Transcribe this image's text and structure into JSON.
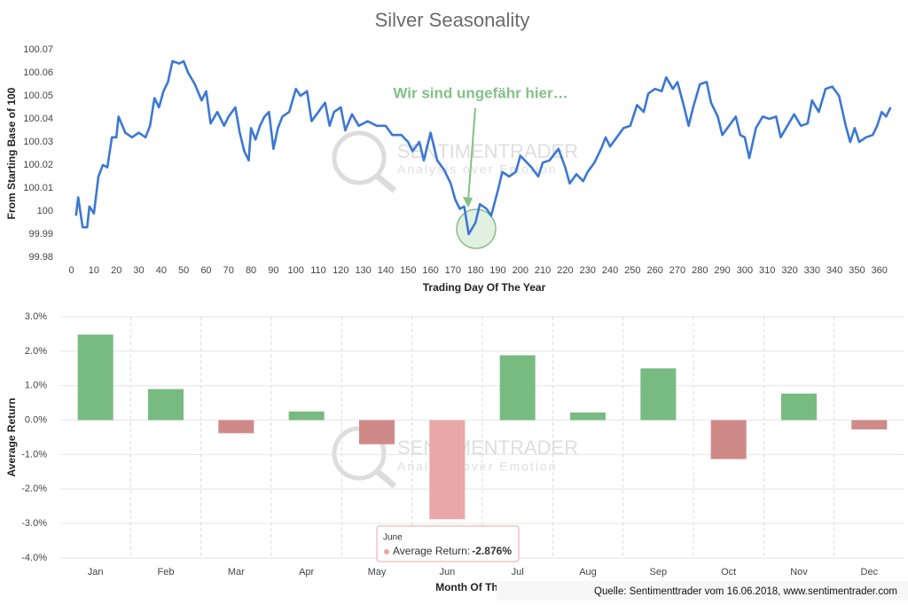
{
  "chart_data": [
    {
      "type": "line",
      "title": "Silver Seasonality",
      "x_label": "Trading Day Of The Year",
      "y_label": "From Starting Base of 100",
      "color": "#3b78d4",
      "annotation": "Wir sind ungefähr hier…",
      "watermark": "SENTIMENTRADER",
      "watermark_tagline": "Analysis over Emotion",
      "x": [
        2,
        3,
        5,
        7,
        8,
        10,
        12,
        14,
        16,
        18,
        20,
        21,
        24,
        27,
        30,
        33,
        35,
        37,
        39,
        41,
        43,
        45,
        48,
        50,
        52,
        55,
        58,
        60,
        62,
        65,
        68,
        70,
        73,
        75,
        77,
        79,
        80,
        82,
        84,
        86,
        88,
        90,
        92,
        94,
        97,
        100,
        102,
        105,
        107,
        110,
        113,
        115,
        117,
        120,
        122,
        125,
        128,
        132,
        136,
        140,
        143,
        147,
        150,
        152,
        155,
        157,
        160,
        163,
        166,
        169,
        171,
        173,
        175,
        177,
        180,
        182,
        185,
        187,
        190,
        192,
        195,
        198,
        200,
        202,
        205,
        208,
        210,
        213,
        217,
        220,
        222,
        225,
        228,
        230,
        233,
        236,
        238,
        240,
        243,
        246,
        249,
        252,
        255,
        257,
        260,
        263,
        265,
        268,
        270,
        273,
        275,
        277,
        280,
        283,
        285,
        288,
        290,
        293,
        296,
        298,
        300,
        302,
        305,
        308,
        311,
        314,
        316,
        319,
        322,
        325,
        328,
        330,
        333,
        336,
        339,
        342,
        345,
        347,
        349,
        351,
        354,
        357,
        359,
        361,
        363,
        365
      ],
      "values": [
        99.998,
        100.006,
        99.993,
        99.993,
        100.002,
        99.999,
        100.015,
        100.02,
        100.019,
        100.032,
        100.032,
        100.041,
        100.034,
        100.032,
        100.034,
        100.032,
        100.037,
        100.049,
        100.045,
        100.052,
        100.056,
        100.065,
        100.064,
        100.065,
        100.06,
        100.055,
        100.048,
        100.052,
        100.038,
        100.043,
        100.037,
        100.041,
        100.045,
        100.034,
        100.026,
        100.022,
        100.036,
        100.031,
        100.037,
        100.041,
        100.043,
        100.027,
        100.036,
        100.041,
        100.043,
        100.053,
        100.05,
        100.052,
        100.039,
        100.043,
        100.047,
        100.037,
        100.043,
        100.045,
        100.035,
        100.042,
        100.037,
        100.039,
        100.037,
        100.037,
        100.033,
        100.033,
        100.03,
        100.026,
        100.03,
        100.022,
        100.034,
        100.022,
        100.018,
        100.012,
        100.005,
        100.001,
        100.002,
        99.99,
        99.995,
        100.003,
        100.001,
        99.998,
        100.009,
        100.017,
        100.015,
        100.017,
        100.024,
        100.022,
        100.019,
        100.015,
        100.021,
        100.022,
        100.027,
        100.019,
        100.012,
        100.016,
        100.013,
        100.017,
        100.021,
        100.027,
        100.032,
        100.028,
        100.032,
        100.036,
        100.037,
        100.046,
        100.043,
        100.051,
        100.053,
        100.052,
        100.058,
        100.053,
        100.056,
        100.045,
        100.037,
        100.045,
        100.055,
        100.056,
        100.047,
        100.041,
        100.033,
        100.037,
        100.041,
        100.033,
        100.032,
        100.023,
        100.036,
        100.041,
        100.04,
        100.041,
        100.032,
        100.037,
        100.042,
        100.037,
        100.038,
        100.048,
        100.043,
        100.053,
        100.054,
        100.05,
        100.037,
        100.03,
        100.036,
        100.03,
        100.032,
        100.033,
        100.037,
        100.043,
        100.041,
        100.045
      ],
      "xlim": [
        -3,
        368
      ],
      "xticks": [
        0,
        10,
        20,
        30,
        40,
        50,
        60,
        70,
        80,
        90,
        100,
        110,
        120,
        130,
        140,
        150,
        160,
        170,
        180,
        190,
        200,
        210,
        220,
        230,
        240,
        250,
        260,
        270,
        280,
        290,
        300,
        310,
        320,
        330,
        340,
        350,
        360
      ],
      "ylim": [
        99.98,
        100.07
      ],
      "yticks": [
        99.98,
        99.99,
        100,
        100.01,
        100.02,
        100.03,
        100.04,
        100.05,
        100.06,
        100.07
      ],
      "grid": false
    },
    {
      "type": "bar",
      "x_label": "Month Of The Year",
      "y_label": "Average Return",
      "watermark": "SENTIMENTRADER",
      "watermark_tagline": "Analysis over Emotion",
      "categories": [
        "Jan",
        "Feb",
        "Mar",
        "Apr",
        "May",
        "Jun",
        "Jul",
        "Aug",
        "Sep",
        "Oct",
        "Nov",
        "Dec"
      ],
      "values": [
        2.48,
        0.9,
        -0.38,
        0.25,
        -0.7,
        -2.876,
        1.88,
        0.22,
        1.5,
        -1.13,
        0.77,
        -0.27
      ],
      "colors": [
        "#77bb80",
        "#77bb80",
        "#cf8a88",
        "#77bb80",
        "#cf8a88",
        "#e9a7a7",
        "#77bb80",
        "#77bb80",
        "#77bb80",
        "#cf8a88",
        "#77bb80",
        "#cf8a88"
      ],
      "ylim": [
        -4,
        3
      ],
      "yticks": [
        {
          "value": -4,
          "label": "-4.0%"
        },
        {
          "value": -3,
          "label": "-3.0%"
        },
        {
          "value": -2,
          "label": "-2.0%"
        },
        {
          "value": -1,
          "label": "-1.0%"
        },
        {
          "value": 0,
          "label": "0.0%"
        },
        {
          "value": 1,
          "label": "1.0%"
        },
        {
          "value": 2,
          "label": "2.0%"
        },
        {
          "value": 3,
          "label": "3.0%"
        }
      ],
      "grid": true,
      "tooltip": {
        "title": "June",
        "series": "Average Return:",
        "value_label": "-2.876%"
      }
    }
  ],
  "source": "Quelle: Sentimenttrader vom 16.06.2018, www.sentimentrader.com"
}
